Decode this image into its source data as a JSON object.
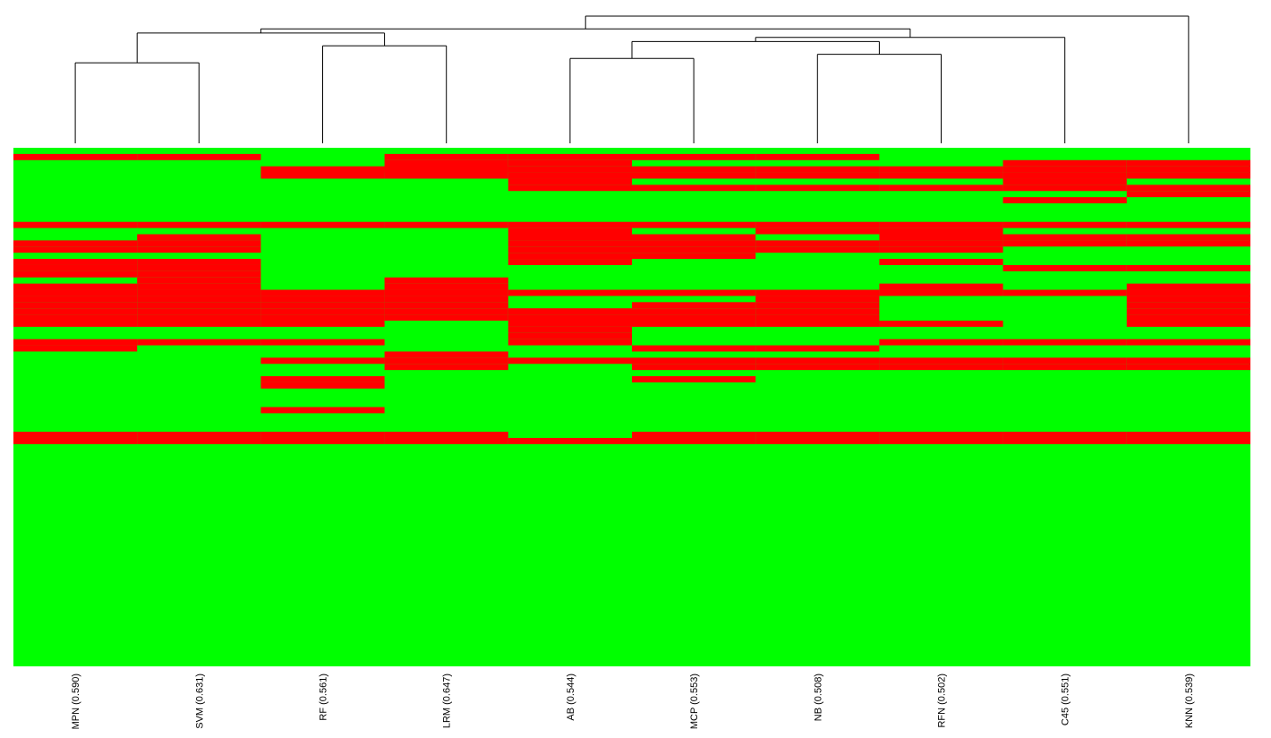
{
  "chart_data": {
    "type": "heatmap",
    "columns": [
      "MPN (0.590)",
      "SVM (0.631)",
      "RF (0.561)",
      "LRM (0.647)",
      "AB (0.544)",
      "MCP (0.553)",
      "NB (0.508)",
      "RFN (0.502)",
      "C45 (0.551)",
      "KNN (0.539)"
    ],
    "colors": {
      "0": "#00ff00",
      "1": "#ff0000"
    },
    "n_rows": 84,
    "rows": [
      "0000000000",
      "1101111000",
      "0002100011",
      "0022111111",
      "0000111111",
      "0000100010",
      "0000111111",
      "0000000001",
      "0000000010",
      "0000000000",
      "0000000000",
      "0000000000",
      "1111111111",
      "0000101100",
      "0100110111",
      "1100111111",
      "1100111100",
      "0000110000",
      "1100100100",
      "1100000011",
      "1100000000",
      "0101000000",
      "1101000101",
      "1111111111",
      "1111001001",
      "1111011001",
      "1111111001",
      "1111111001",
      "1110111101",
      "0000100000",
      "0000100000",
      "1110100111",
      "1000011000",
      "0001000000",
      "0011111111",
      "0001011111",
      "0000000000",
      "0010010000",
      "0010000000",
      "0000000000",
      "0000000000",
      "0000000000",
      "0010000000",
      "0000000000",
      "0000000000",
      "0000000000",
      "1111011111",
      "1111111111",
      "0000000000",
      "0000000000",
      "0000000000",
      "0000000000",
      "0000000000",
      "0000000000",
      "0000000000",
      "0000000000",
      "0000000000",
      "0000000000",
      "0000000000",
      "0000000000",
      "0000000000",
      "0000000000",
      "0000000000",
      "0000000000",
      "0000000000",
      "0000000000",
      "0000000000",
      "0000000000",
      "0000000000",
      "0000000000",
      "0000000000",
      "0000000000",
      "0000000000",
      "0000000000",
      "0000000000",
      "0000000000",
      "0000000000",
      "0000000000",
      "0000000000",
      "0000000000",
      "0000000000",
      "0000000000",
      "0000000000",
      "0000000000"
    ],
    "dendrogram": {
      "merges": [
        {
          "left": 0,
          "right": 1,
          "height": 0.19
        },
        {
          "left": 2,
          "right": 3,
          "height": 0.23
        },
        {
          "left": 10,
          "right": 11,
          "height": 0.26
        },
        {
          "left": 4,
          "right": 5,
          "height": 0.2
        },
        {
          "left": 6,
          "right": 7,
          "height": 0.21
        },
        {
          "left": 13,
          "right": 14,
          "height": 0.24
        },
        {
          "left": 15,
          "right": 8,
          "height": 0.25
        },
        {
          "left": 12,
          "right": 16,
          "height": 0.27
        },
        {
          "left": 17,
          "right": 9,
          "height": 0.3
        }
      ]
    }
  }
}
